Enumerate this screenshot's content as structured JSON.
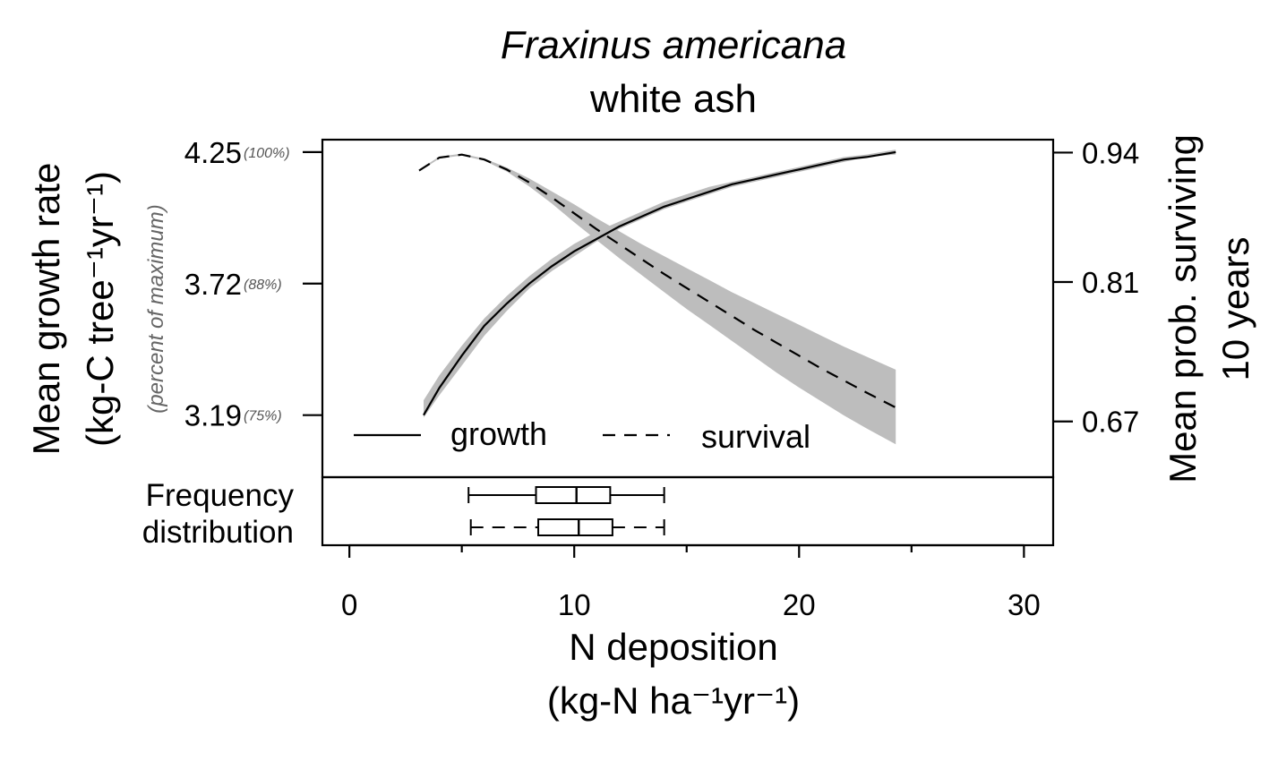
{
  "chart_data": {
    "type": "line",
    "title": "Fraxinus americana",
    "subtitle": "white ash",
    "xlabel_line1": "N deposition",
    "xlabel_line2": "(kg-N ha⁻¹yr⁻¹)",
    "ylabel_left_line1": "Mean growth rate",
    "ylabel_left_line2": "(kg-C tree⁻¹yr⁻¹)",
    "ylabel_left_note": "(percent of maximum)",
    "ylabel_right_line1": "Mean prob. surviving",
    "ylabel_right_line2": "10 years",
    "xlim": [
      -1.2,
      31.3
    ],
    "x_ticks": [
      0,
      10,
      20,
      30
    ],
    "x_minor_ticks": [
      5,
      15,
      25
    ],
    "x_tick_labels": [
      "0",
      "10",
      "20",
      "30"
    ],
    "y_left": {
      "ylim": [
        2.94,
        4.3
      ],
      "ticks": [
        4.25,
        3.72,
        3.19
      ],
      "tick_labels": [
        "4.25",
        "3.72",
        "3.19"
      ],
      "percent_labels": [
        "(100%)",
        "(88%)",
        "(75%)"
      ]
    },
    "y_right": {
      "ylim": [
        0.614,
        0.953
      ],
      "ticks": [
        0.94,
        0.81,
        0.67
      ],
      "tick_labels": [
        "0.94",
        "0.81",
        "0.67"
      ]
    },
    "legend": {
      "placement": "bottom-left",
      "growth": "growth",
      "survival": "survival"
    },
    "series": [
      {
        "name": "growth",
        "axis": "left",
        "style": "solid",
        "x": [
          3.3,
          4,
          5,
          6,
          7,
          8,
          9,
          10,
          11,
          12,
          13,
          14,
          15,
          16,
          17,
          18,
          19,
          20,
          21,
          22,
          23,
          24.3
        ],
        "y": [
          3.19,
          3.3,
          3.43,
          3.55,
          3.64,
          3.72,
          3.79,
          3.85,
          3.9,
          3.95,
          3.99,
          4.03,
          4.06,
          4.09,
          4.12,
          4.14,
          4.16,
          4.18,
          4.2,
          4.22,
          4.23,
          4.25
        ],
        "y_lower": [
          3.18,
          3.27,
          3.39,
          3.51,
          3.61,
          3.7,
          3.77,
          3.83,
          3.89,
          3.94,
          3.98,
          4.02,
          4.05,
          4.08,
          4.11,
          4.13,
          4.15,
          4.17,
          4.19,
          4.21,
          4.23,
          4.24
        ],
        "y_upper": [
          3.25,
          3.35,
          3.47,
          3.58,
          3.67,
          3.75,
          3.82,
          3.88,
          3.93,
          3.97,
          4.01,
          4.05,
          4.08,
          4.11,
          4.13,
          4.15,
          4.17,
          4.19,
          4.21,
          4.23,
          4.24,
          4.26
        ]
      },
      {
        "name": "survival",
        "axis": "right",
        "style": "dashed",
        "x": [
          3.1,
          4,
          5,
          6,
          7,
          8,
          9,
          10,
          11,
          12,
          13,
          14,
          15,
          16,
          17,
          18,
          19,
          20,
          21,
          22,
          23,
          24.3
        ],
        "y": [
          0.922,
          0.935,
          0.938,
          0.933,
          0.923,
          0.91,
          0.895,
          0.879,
          0.863,
          0.848,
          0.833,
          0.818,
          0.804,
          0.79,
          0.776,
          0.762,
          0.749,
          0.736,
          0.723,
          0.711,
          0.699,
          0.684
        ],
        "y_lower": [
          0.921,
          0.934,
          0.937,
          0.932,
          0.921,
          0.906,
          0.889,
          0.87,
          0.852,
          0.834,
          0.817,
          0.8,
          0.783,
          0.767,
          0.751,
          0.735,
          0.719,
          0.704,
          0.69,
          0.676,
          0.663,
          0.647
        ],
        "y_upper": [
          0.923,
          0.936,
          0.939,
          0.934,
          0.925,
          0.914,
          0.901,
          0.888,
          0.874,
          0.861,
          0.848,
          0.836,
          0.824,
          0.812,
          0.8,
          0.789,
          0.778,
          0.767,
          0.756,
          0.745,
          0.735,
          0.722
        ]
      }
    ],
    "boxplots": {
      "label_line1": "Frequency",
      "label_line2": "distribution",
      "growth": {
        "style": "solid",
        "whisker_low": 5.3,
        "q1": 8.3,
        "median": 10.1,
        "q3": 11.6,
        "whisker_high": 14.0
      },
      "survival": {
        "style": "dashed",
        "whisker_low": 5.4,
        "q1": 8.4,
        "median": 10.2,
        "q3": 11.7,
        "whisker_high": 14.0
      }
    },
    "colors": {
      "band": "#bdbdbd",
      "line": "#000000",
      "note": "#666666"
    }
  }
}
